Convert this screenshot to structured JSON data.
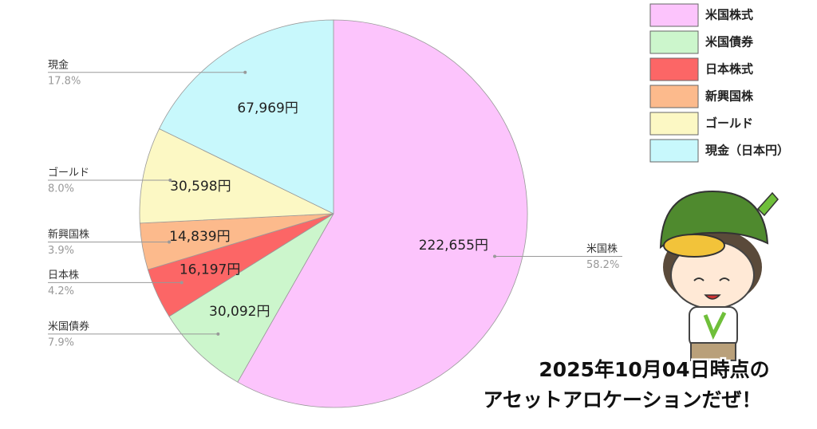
{
  "chart_data": {
    "type": "pie",
    "categories": [
      "米国株",
      "米国債券",
      "日本株",
      "新興国株",
      "ゴールド",
      "現金"
    ],
    "values": [
      222655,
      30092,
      16197,
      14839,
      30598,
      67969
    ],
    "value_labels": [
      "222,655円",
      "30,092円",
      "16,197円",
      "14,839円",
      "30,598円",
      "67,969円"
    ],
    "percent_labels": [
      "58.2%",
      "7.9%",
      "4.2%",
      "3.9%",
      "8.0%",
      "17.8%"
    ],
    "legend": [
      "米国株式",
      "米国債券",
      "日本株式",
      "新興国株",
      "ゴールド",
      "現金（日本円）"
    ],
    "colors": [
      "#fcc4fc",
      "#ccf6cc",
      "#fc6666",
      "#fcba8c",
      "#fcf8c4",
      "#c8f8fc"
    ],
    "legend_position": "upper right",
    "annotations": [
      "2025年10月04日時点の",
      "アセットアロケーションだぜ！"
    ]
  }
}
